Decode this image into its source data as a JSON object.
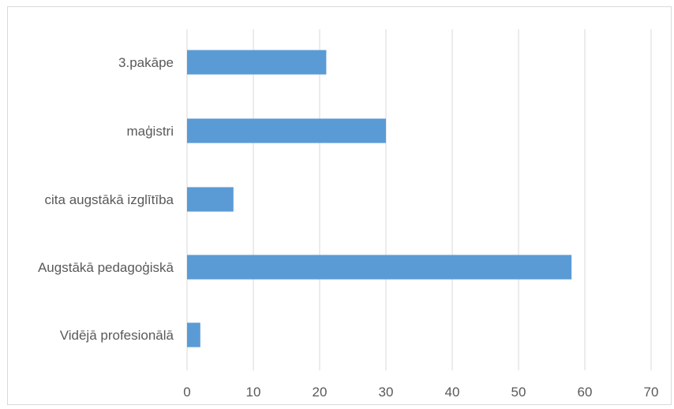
{
  "chart_data": {
    "type": "bar",
    "orientation": "horizontal",
    "categories": [
      "3.pakāpe",
      "maģistri",
      "cita augstākā izglītība",
      "Augstākā pedagoģiskā",
      "Vidējā profesionālā"
    ],
    "values": [
      21,
      30,
      7,
      58,
      2
    ],
    "title": "",
    "xlabel": "",
    "ylabel": "",
    "xlim": [
      0,
      70
    ],
    "x_ticks": [
      "0",
      "10",
      "20",
      "30",
      "40",
      "50",
      "60",
      "70"
    ],
    "grid": "vertical",
    "legend": "none"
  },
  "colors": {
    "bar": "#5b9bd5",
    "grid": "#d9d9d9",
    "text": "#595959",
    "border": "#d9d9d9"
  }
}
